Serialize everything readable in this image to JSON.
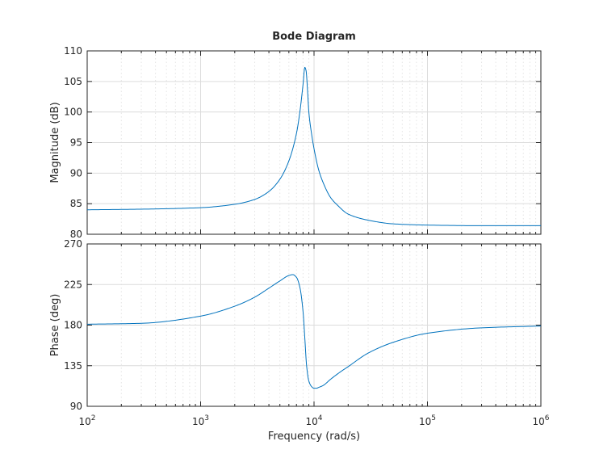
{
  "chart_data": {
    "type": "line",
    "title": "Bode Diagram",
    "xlabel": "Frequency  (rad/s)",
    "x_scale": "log",
    "xlim": [
      100,
      1000000
    ],
    "x_ticks": [
      {
        "base": "10",
        "exp": "2"
      },
      {
        "base": "10",
        "exp": "3"
      },
      {
        "base": "10",
        "exp": "4"
      },
      {
        "base": "10",
        "exp": "5"
      },
      {
        "base": "10",
        "exp": "6"
      }
    ],
    "grid": true,
    "line_color": "#0072bd",
    "panels": [
      {
        "ylabel": "Magnitude (dB)",
        "ylim": [
          80,
          110
        ],
        "y_ticks": [
          "80",
          "85",
          "90",
          "95",
          "100",
          "105",
          "110"
        ],
        "x": [
          100,
          300,
          1000,
          2000,
          3000,
          4000,
          5000,
          6000,
          7000,
          7500,
          8000,
          8300,
          8500,
          8800,
          9000,
          9500,
          10000,
          11000,
          12000,
          14000,
          16000,
          20000,
          30000,
          50000,
          100000,
          300000,
          1000000
        ],
        "y": [
          84.0,
          84.1,
          84.35,
          84.9,
          85.7,
          87.0,
          89.0,
          92.0,
          96.5,
          100.0,
          104.5,
          107.3,
          106.8,
          103.0,
          100.0,
          96.5,
          94.0,
          90.5,
          88.5,
          86.0,
          84.8,
          83.3,
          82.3,
          81.7,
          81.5,
          81.4,
          81.4
        ]
      },
      {
        "ylabel": "Phase (deg)",
        "ylim": [
          90,
          270
        ],
        "y_ticks": [
          "90",
          "135",
          "180",
          "225",
          "270"
        ],
        "x": [
          100,
          300,
          1000,
          2000,
          3000,
          4000,
          5000,
          6000,
          6500,
          7000,
          7500,
          8000,
          8300,
          8600,
          9000,
          9500,
          10000,
          10500,
          11000,
          12000,
          14000,
          17000,
          20000,
          30000,
          50000,
          100000,
          300000,
          1000000
        ],
        "y": [
          181,
          182,
          190,
          201,
          211,
          221,
          229,
          235,
          236,
          233,
          222,
          195,
          165,
          135,
          118,
          112,
          110,
          110,
          111,
          113,
          120,
          128,
          134,
          149,
          161,
          171,
          177,
          179
        ]
      }
    ]
  }
}
